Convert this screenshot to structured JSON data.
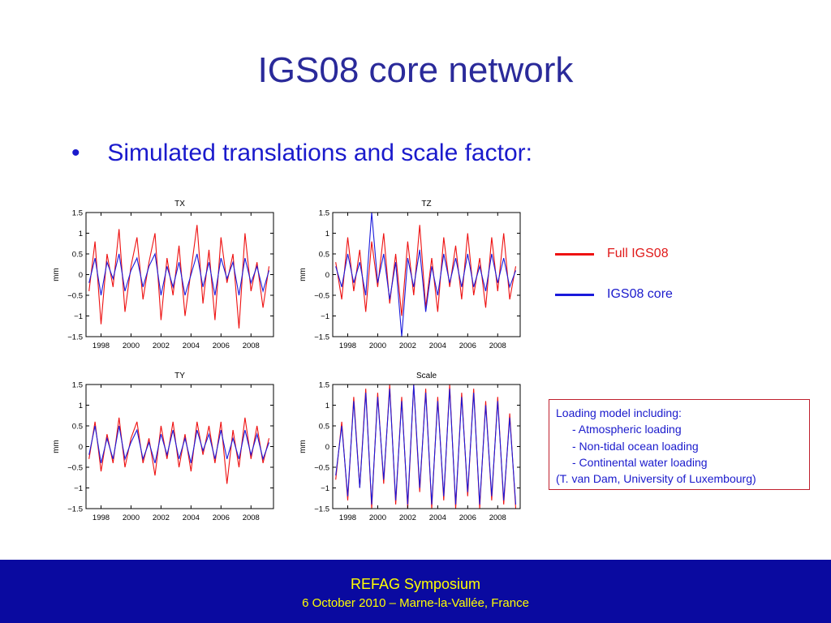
{
  "slide": {
    "title": "IGS08 core network",
    "bullet": "Simulated translations and scale factor:"
  },
  "legend": {
    "full": {
      "label": "Full IGS08",
      "color": "#ee1111"
    },
    "core": {
      "label": "IGS08 core",
      "color": "#1a1adb"
    }
  },
  "notes": {
    "heading": "Loading model including:",
    "items": [
      "- Atmospheric loading",
      "- Non-tidal ocean loading",
      "- Continental water loading"
    ],
    "credit": "(T. van Dam, University of Luxembourg)"
  },
  "footer": {
    "title": "REFAG Symposium",
    "subtitle": "6 October 2010 – Marne-la-Vallée, France"
  },
  "chart_data": [
    {
      "type": "line",
      "title": "TX",
      "ylabel": "mm",
      "xlim": [
        1997,
        2009.5
      ],
      "ylim": [
        -1.5,
        1.5
      ],
      "xticks": [
        "1998",
        "2000",
        "2002",
        "2004",
        "2006",
        "2008"
      ],
      "yticks": [
        "1.5",
        "1",
        "0.5",
        "0",
        "−0.5",
        "−1",
        "−1.5"
      ],
      "series": [
        {
          "name": "Full IGS08",
          "color": "#ee1111",
          "x": [
            1997.2,
            1997.6,
            1998.0,
            1998.4,
            1998.8,
            1999.2,
            1999.6,
            2000.0,
            2000.4,
            2000.8,
            2001.2,
            2001.6,
            2002.0,
            2002.4,
            2002.8,
            2003.2,
            2003.6,
            2004.0,
            2004.4,
            2004.8,
            2005.2,
            2005.6,
            2006.0,
            2006.4,
            2006.8,
            2007.2,
            2007.6,
            2008.0,
            2008.4,
            2008.8,
            2009.2
          ],
          "values": [
            -0.4,
            0.8,
            -1.2,
            0.5,
            -0.3,
            1.1,
            -0.9,
            0.2,
            0.9,
            -0.6,
            0.3,
            1.0,
            -1.1,
            0.4,
            -0.5,
            0.7,
            -1.0,
            0.1,
            1.2,
            -0.7,
            0.6,
            -1.1,
            0.9,
            -0.2,
            0.5,
            -1.3,
            1.0,
            -0.4,
            0.3,
            -0.8,
            0.2
          ]
        },
        {
          "name": "IGS08 core",
          "color": "#1a1adb",
          "x": [
            1997.2,
            1997.6,
            1998.0,
            1998.4,
            1998.8,
            1999.2,
            1999.6,
            2000.0,
            2000.4,
            2000.8,
            2001.2,
            2001.6,
            2002.0,
            2002.4,
            2002.8,
            2003.2,
            2003.6,
            2004.0,
            2004.4,
            2004.8,
            2005.2,
            2005.6,
            2006.0,
            2006.4,
            2006.8,
            2007.2,
            2007.6,
            2008.0,
            2008.4,
            2008.8,
            2009.2
          ],
          "values": [
            -0.2,
            0.4,
            -0.5,
            0.3,
            -0.1,
            0.5,
            -0.4,
            0.1,
            0.4,
            -0.3,
            0.2,
            0.5,
            -0.5,
            0.2,
            -0.3,
            0.3,
            -0.5,
            0.0,
            0.5,
            -0.3,
            0.3,
            -0.5,
            0.4,
            -0.1,
            0.3,
            -0.5,
            0.4,
            -0.2,
            0.2,
            -0.4,
            0.1
          ]
        }
      ]
    },
    {
      "type": "line",
      "title": "TZ",
      "ylabel": "mm",
      "xlim": [
        1997,
        2009.5
      ],
      "ylim": [
        -1.5,
        1.5
      ],
      "xticks": [
        "1998",
        "2000",
        "2002",
        "2004",
        "2006",
        "2008"
      ],
      "yticks": [
        "1.5",
        "1",
        "0.5",
        "0",
        "−0.5",
        "−1",
        "−1.5"
      ],
      "series": [
        {
          "name": "Full IGS08",
          "color": "#ee1111",
          "x": [
            1997.2,
            1997.6,
            1998.0,
            1998.4,
            1998.8,
            1999.2,
            1999.6,
            2000.0,
            2000.4,
            2000.8,
            2001.2,
            2001.6,
            2002.0,
            2002.4,
            2002.8,
            2003.2,
            2003.6,
            2004.0,
            2004.4,
            2004.8,
            2005.2,
            2005.6,
            2006.0,
            2006.4,
            2006.8,
            2007.2,
            2007.6,
            2008.0,
            2008.4,
            2008.8,
            2009.2
          ],
          "values": [
            0.3,
            -0.6,
            0.9,
            -0.4,
            0.6,
            -0.9,
            0.8,
            -0.3,
            1.0,
            -0.7,
            0.5,
            -1.0,
            0.8,
            -0.5,
            1.2,
            -0.8,
            0.4,
            -0.9,
            0.9,
            -0.3,
            0.7,
            -0.6,
            1.0,
            -0.5,
            0.4,
            -0.8,
            0.9,
            -0.4,
            1.0,
            -0.6,
            0.2
          ]
        },
        {
          "name": "IGS08 core",
          "color": "#1a1adb",
          "x": [
            1997.2,
            1997.6,
            1998.0,
            1998.4,
            1998.8,
            1999.2,
            1999.6,
            2000.0,
            2000.4,
            2000.8,
            2001.2,
            2001.6,
            2002.0,
            2002.4,
            2002.8,
            2003.2,
            2003.6,
            2004.0,
            2004.4,
            2004.8,
            2005.2,
            2005.6,
            2006.0,
            2006.4,
            2006.8,
            2007.2,
            2007.6,
            2008.0,
            2008.4,
            2008.8,
            2009.2
          ],
          "values": [
            0.2,
            -0.3,
            0.5,
            -0.2,
            0.3,
            -0.5,
            1.5,
            -0.2,
            0.5,
            -0.6,
            0.3,
            -1.5,
            0.4,
            -0.3,
            0.6,
            -0.9,
            0.2,
            -0.5,
            0.5,
            -0.2,
            0.4,
            -0.3,
            0.5,
            -0.3,
            0.2,
            -0.4,
            0.5,
            -0.2,
            0.4,
            -0.3,
            0.1
          ]
        }
      ]
    },
    {
      "type": "line",
      "title": "TY",
      "ylabel": "mm",
      "xlim": [
        1997,
        2009.5
      ],
      "ylim": [
        -1.5,
        1.5
      ],
      "xticks": [
        "1998",
        "2000",
        "2002",
        "2004",
        "2006",
        "2008"
      ],
      "yticks": [
        "1.5",
        "1",
        "0.5",
        "0",
        "−0.5",
        "−1",
        "−1.5"
      ],
      "series": [
        {
          "name": "Full IGS08",
          "color": "#ee1111",
          "x": [
            1997.2,
            1997.6,
            1998.0,
            1998.4,
            1998.8,
            1999.2,
            1999.6,
            2000.0,
            2000.4,
            2000.8,
            2001.2,
            2001.6,
            2002.0,
            2002.4,
            2002.8,
            2003.2,
            2003.6,
            2004.0,
            2004.4,
            2004.8,
            2005.2,
            2005.6,
            2006.0,
            2006.4,
            2006.8,
            2007.2,
            2007.6,
            2008.0,
            2008.4,
            2008.8,
            2009.2
          ],
          "values": [
            -0.3,
            0.6,
            -0.6,
            0.3,
            -0.4,
            0.7,
            -0.5,
            0.2,
            0.6,
            -0.4,
            0.2,
            -0.7,
            0.5,
            -0.3,
            0.6,
            -0.5,
            0.3,
            -0.6,
            0.6,
            -0.2,
            0.5,
            -0.4,
            0.6,
            -0.9,
            0.4,
            -0.5,
            0.7,
            -0.3,
            0.5,
            -0.4,
            0.2
          ]
        },
        {
          "name": "IGS08 core",
          "color": "#1a1adb",
          "x": [
            1997.2,
            1997.6,
            1998.0,
            1998.4,
            1998.8,
            1999.2,
            1999.6,
            2000.0,
            2000.4,
            2000.8,
            2001.2,
            2001.6,
            2002.0,
            2002.4,
            2002.8,
            2003.2,
            2003.6,
            2004.0,
            2004.4,
            2004.8,
            2005.2,
            2005.6,
            2006.0,
            2006.4,
            2006.8,
            2007.2,
            2007.6,
            2008.0,
            2008.4,
            2008.8,
            2009.2
          ],
          "values": [
            -0.2,
            0.5,
            -0.4,
            0.2,
            -0.3,
            0.5,
            -0.3,
            0.1,
            0.4,
            -0.3,
            0.1,
            -0.4,
            0.3,
            -0.2,
            0.4,
            -0.3,
            0.2,
            -0.4,
            0.4,
            -0.1,
            0.3,
            -0.3,
            0.4,
            -0.3,
            0.2,
            -0.3,
            0.4,
            -0.2,
            0.3,
            -0.3,
            0.1
          ]
        }
      ]
    },
    {
      "type": "line",
      "title": "Scale",
      "ylabel": "mm",
      "xlim": [
        1997,
        2009.5
      ],
      "ylim": [
        -1.5,
        1.5
      ],
      "xticks": [
        "1998",
        "2000",
        "2002",
        "2004",
        "2006",
        "2008"
      ],
      "yticks": [
        "1.5",
        "1",
        "0.5",
        "0",
        "−0.5",
        "−1",
        "−1.5"
      ],
      "series": [
        {
          "name": "Full IGS08",
          "color": "#ee1111",
          "x": [
            1997.2,
            1997.6,
            1998.0,
            1998.4,
            1998.8,
            1999.2,
            1999.6,
            2000.0,
            2000.4,
            2000.8,
            2001.2,
            2001.6,
            2002.0,
            2002.4,
            2002.8,
            2003.2,
            2003.6,
            2004.0,
            2004.4,
            2004.8,
            2005.2,
            2005.6,
            2006.0,
            2006.4,
            2006.8,
            2007.2,
            2007.6,
            2008.0,
            2008.4,
            2008.8,
            2009.2
          ],
          "values": [
            -0.8,
            0.6,
            -1.3,
            1.2,
            -1.0,
            1.4,
            -1.5,
            1.3,
            -0.9,
            1.5,
            -1.4,
            1.2,
            -1.5,
            1.5,
            -1.1,
            1.4,
            -1.5,
            1.2,
            -1.3,
            1.5,
            -1.5,
            1.3,
            -1.2,
            1.4,
            -1.5,
            1.1,
            -1.3,
            1.2,
            -1.4,
            0.8,
            -1.5
          ]
        },
        {
          "name": "IGS08 core",
          "color": "#1a1adb",
          "x": [
            1997.2,
            1997.6,
            1998.0,
            1998.4,
            1998.8,
            1999.2,
            1999.6,
            2000.0,
            2000.4,
            2000.8,
            2001.2,
            2001.6,
            2002.0,
            2002.4,
            2002.8,
            2003.2,
            2003.6,
            2004.0,
            2004.4,
            2004.8,
            2005.2,
            2005.6,
            2006.0,
            2006.4,
            2006.8,
            2007.2,
            2007.6,
            2008.0,
            2008.4,
            2008.8,
            2009.2
          ],
          "values": [
            -0.7,
            0.5,
            -1.2,
            1.1,
            -1.0,
            1.3,
            -1.4,
            1.2,
            -0.8,
            1.4,
            -1.3,
            1.1,
            -1.4,
            1.5,
            -1.0,
            1.3,
            -1.4,
            1.1,
            -1.2,
            1.4,
            -1.4,
            1.2,
            -1.1,
            1.3,
            -1.4,
            1.0,
            -1.2,
            1.1,
            -1.3,
            0.7,
            -1.4
          ]
        }
      ]
    }
  ]
}
